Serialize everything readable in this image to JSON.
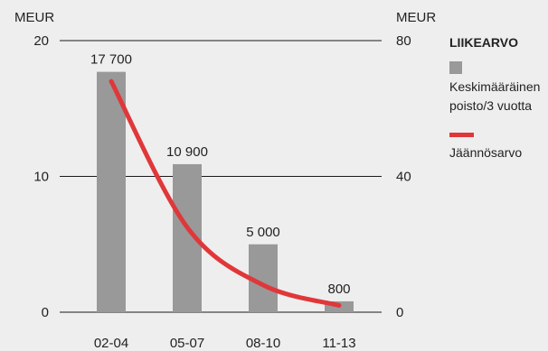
{
  "chart_data": {
    "type": "bar",
    "categories": [
      "02-04",
      "05-07",
      "08-10",
      "11-13"
    ],
    "left_axis": {
      "unit": "MEUR",
      "ylim": [
        0,
        20
      ],
      "ticks": [
        0,
        10,
        20
      ],
      "tick_labels": [
        "0",
        "10",
        "20"
      ]
    },
    "right_axis": {
      "unit": "MEUR",
      "ylim": [
        0,
        80
      ],
      "ticks": [
        0,
        40,
        80
      ],
      "tick_labels": [
        "0",
        "40",
        "80"
      ]
    },
    "series": [
      {
        "name": "Keskimääräinen poisto/3 vuotta",
        "kind": "bar",
        "axis": "left",
        "color": "#999999",
        "values": [
          17.7,
          10.9,
          5.0,
          0.8
        ],
        "value_labels": [
          "17 700",
          "10 900",
          "5 000",
          "800"
        ]
      },
      {
        "name": "Jäännösarvo",
        "kind": "line",
        "axis": "right",
        "color": "#e0373a",
        "values": [
          68,
          25,
          8,
          2
        ]
      }
    ],
    "legend": {
      "title": "LIIKEARVO",
      "position": "right",
      "items": [
        {
          "lines": [
            "Keskimääräinen",
            "poisto/3 vuotta"
          ],
          "swatch": "square",
          "color": "#999999"
        },
        {
          "lines": [
            "Jäännösarvo"
          ],
          "swatch": "line",
          "color": "#e0373a"
        }
      ]
    },
    "grid": true
  }
}
